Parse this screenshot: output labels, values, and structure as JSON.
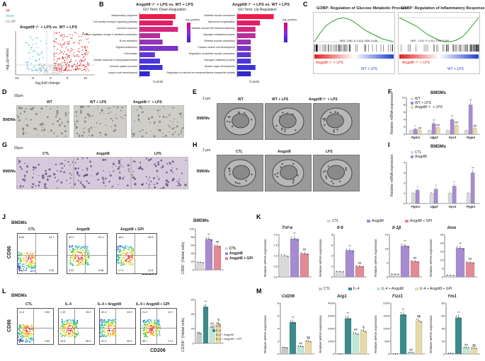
{
  "panels": {
    "A": "A",
    "B": "B",
    "C": "C",
    "D": "D",
    "E": "E",
    "F": "F",
    "G": "G",
    "H": "H",
    "I": "I",
    "J": "J",
    "K": "K",
    "L": "L",
    "M": "M"
  },
  "volcano": {
    "legend": [
      "up",
      "down",
      "no-diff"
    ],
    "colors": {
      "up": "#e41a1c",
      "down": "#4fb7c7",
      "nodiff": "#c8c8c8"
    },
    "title": "Angptl8⁻/⁻ + LPS vs. WT + LPS",
    "xlabel": "log₂fold change",
    "ylabel": "-log₁₀(p-value)",
    "xticks": [
      "-10",
      "-5",
      "0",
      "5",
      "10"
    ]
  },
  "go": {
    "down_title": "Angptl8⁻/⁻ + LPS vs. WT + LPS",
    "down_sub": "GO Term: Down Regulation",
    "up_title": "Angptl8⁻/⁻ + LPS vs. WT + LPS",
    "up_sub": "GO Term: Up Regulation",
    "legend_title": "-log₁₀(pvalue)",
    "counts_label": "Counts",
    "down_terms": [
      "Inflammatory response",
      "Cell surface receptor signaling pathway",
      "Immune response",
      "Positive regulation of type II interferon production",
      "B cell activation",
      "Signal transduction",
      "Chemotaxis",
      "Cellular response to lipopolysaccharide",
      "Immune system process",
      "Lymph node development"
    ],
    "down_counts": [
      14,
      13,
      15,
      8,
      9,
      15,
      6,
      8,
      9,
      4
    ],
    "up_terms": [
      "Skeletal muscle contraction",
      "Sarcomere organization",
      "Skeletal muscle thin filament assembly",
      "Glycogen metabolic process",
      "Skeletal muscle contraction",
      "Cardiac muscle cell development",
      "Regulation of skeletal muscle contraction",
      "Glycogen catabolic process",
      "Muscle organ development",
      "Regulation of calcium ion transmembrane transporter activity"
    ],
    "up_counts": [
      8,
      5,
      4,
      4,
      3,
      3,
      3,
      3,
      4,
      3
    ]
  },
  "gsea": {
    "left_title": "GOBP: Regulation of Glucose Metabolic Process",
    "right_title": "GOBP: Regulation of Inflammatory Response",
    "left_stats": "NES: 1.581, P: 0.014, FDR: 0.036",
    "right_stats": "NES: -1.512, P: 0.001, FDR: 0.005",
    "left_pos": "Angptl8⁻/⁻ + LPS",
    "left_neg": "WT + LPS",
    "right_pos": "Angptl8⁻/⁻ + LPS",
    "right_neg": "WT + LPS"
  },
  "D": {
    "scale": "50μm",
    "row": "BMDMs",
    "cols": [
      "WT",
      "WT + LPS",
      "Angptl8⁻/⁻ + LPS"
    ]
  },
  "E": {
    "scale": "2 μm",
    "row": "BMDMs",
    "cols": [
      "WT",
      "WT + LPS",
      "Angptl8⁻/⁻ + LPS"
    ]
  },
  "F": {
    "title": "BMDMs",
    "ylabel": "Relative mRNA expression",
    "legend": [
      "WT",
      "WT + LPS",
      "Angptl8⁻/⁻ + LPS"
    ],
    "genes": [
      "Pgm1",
      "Ugp2",
      "Gys1",
      "Pygm"
    ],
    "ymax": 10,
    "yticks": [
      "0",
      "2",
      "4",
      "6",
      "8",
      "10"
    ],
    "values": [
      [
        1,
        1,
        1,
        1
      ],
      [
        1.4,
        2.9,
        4.0,
        8.0
      ],
      [
        1.0,
        1.8,
        2.4,
        1.6
      ]
    ],
    "sig": [
      [
        "",
        ""
      ],
      [
        "*",
        "##"
      ],
      [
        "**",
        "##"
      ],
      [
        "**",
        "##"
      ],
      [
        "**",
        "##"
      ]
    ]
  },
  "G": {
    "scale": "50μm",
    "row": "BMDMs",
    "cols": [
      "CTL",
      "Angptl8",
      "LPS"
    ]
  },
  "H": {
    "scale": "2 μm",
    "row": "BMDMs",
    "cols": [
      "CTL",
      "Angptl8",
      "LPS"
    ]
  },
  "I": {
    "title": "BMDMs",
    "ylabel": "Relative mRNA expression",
    "legend": [
      "CTL",
      "Angptl8"
    ],
    "genes": [
      "Pgm1",
      "Ugp2",
      "Gys1",
      "Pygm"
    ],
    "ymax": 4,
    "yticks": [
      "0",
      "1",
      "2",
      "3",
      "4"
    ],
    "values": [
      [
        1,
        1,
        1,
        1
      ],
      [
        1.3,
        1.4,
        1.7,
        3.0
      ]
    ],
    "sig": [
      "*",
      "*",
      "*",
      "**"
    ]
  },
  "J": {
    "title": "BMDMs",
    "plots": [
      "CTL",
      "Angptl8",
      "Angptl8 + GPI"
    ],
    "xlabel": "CD206",
    "ylabel": "CD86",
    "quads": [
      [
        "0.64",
        "14.7",
        "84.2",
        "0.52"
      ],
      [
        "40.3",
        "51.1",
        "3.02",
        "5.58"
      ],
      [
        "15.3",
        "45.8",
        "17.3",
        "21.6"
      ]
    ],
    "bar_title": "BMDMs",
    "bar_ylabel": "CD86⁺ (%total cells)",
    "legend": [
      "CTL",
      "Angptl8",
      "Angptl8 + GPI"
    ],
    "values": [
      18,
      75,
      58
    ],
    "ymax": 100,
    "yticks": [
      "0",
      "20",
      "40",
      "60",
      "80",
      "100"
    ],
    "sig": [
      "",
      "**",
      "##"
    ]
  },
  "K": {
    "legend": [
      "CTL",
      "Angptl8",
      "Angptl8 + GPI"
    ],
    "ylabel": "Relative mRNA expression",
    "genes": [
      {
        "name": "Tnf-α",
        "values": [
          1.0,
          1.8,
          1.1
        ],
        "ymax": 2.0,
        "yticks": [
          "0.0",
          "0.5",
          "1.0",
          "1.5",
          "2.0"
        ],
        "sig": [
          "",
          "**",
          "##"
        ]
      },
      {
        "name": "Il-6",
        "values": [
          1.0,
          5.0,
          2.0
        ],
        "ymax": 8,
        "yticks": [
          "0",
          "2",
          "4",
          "6",
          "8"
        ],
        "sig": [
          "",
          "**",
          "##"
        ]
      },
      {
        "name": "Il-1β",
        "values": [
          1.0,
          11.0,
          5.5
        ],
        "ymax": 15,
        "yticks": [
          "0",
          "5",
          "10",
          "15"
        ],
        "sig": [
          "",
          "**",
          "##"
        ]
      },
      {
        "name": "Inos",
        "values": [
          1.0,
          17.0,
          8.5
        ],
        "ymax": 25,
        "yticks": [
          "0",
          "5",
          "10",
          "15",
          "20",
          "25"
        ],
        "sig": [
          "",
          "**",
          "##"
        ]
      }
    ]
  },
  "L": {
    "title": "BMDMs",
    "plots": [
      "CTL",
      "IL-4",
      "IL-4 + Angptl8",
      "IL-4 + Angptl8 + GPI"
    ],
    "xlabel": "CD206",
    "ylabel": "CD86",
    "quads": [
      [
        "11.4",
        "3.52",
        "83.1",
        "2.62"
      ],
      [
        "1.10",
        "19.2",
        "23.5",
        "56.3"
      ],
      [
        "22.4",
        "14.3",
        "51.0",
        "30.3"
      ],
      [
        "21.0",
        "12.7",
        "55.7",
        "17.3"
      ]
    ],
    "bar_ylabel": "CD206⁺ (%total cells)",
    "legend": [
      "CTL",
      "IL-4",
      "IL-4 + Angptl8",
      "IL-4 + Angptl8 + GPI"
    ],
    "values": [
      14,
      50,
      22,
      27
    ],
    "ymax": 60,
    "yticks": [
      "0",
      "20",
      "40",
      "60"
    ],
    "sig": [
      "",
      "**",
      "##",
      "$"
    ]
  },
  "M": {
    "legend": [
      "CTL",
      "IL-4",
      "IL-4 + Angptl8",
      "IL-4 + Angptl8 + GPI"
    ],
    "ylabel": "Relative mRNA expression",
    "genes": [
      {
        "name": "Cd206",
        "values": [
          1.0,
          5.0,
          1.2,
          2.0
        ],
        "ymax": 8,
        "yticks": [
          "0",
          "2",
          "4",
          "6",
          "8"
        ],
        "sig": [
          "",
          "**",
          "##",
          "$$"
        ]
      },
      {
        "name": "Arg1",
        "values": [
          1,
          2800,
          1600,
          1800
        ],
        "ymax": 4000,
        "yticks": [
          "0",
          "1000",
          "2000",
          "3000",
          "4000"
        ],
        "sig": [
          "",
          "**",
          "##",
          "$"
        ]
      },
      {
        "name": "Fizz1",
        "values": [
          1,
          1550,
          60,
          1300
        ],
        "ymax": 2000,
        "yticks": [
          "0",
          "500",
          "1000",
          "1500",
          "2000"
        ],
        "sig": [
          "",
          "**",
          "##",
          "$$"
        ]
      },
      {
        "name": "Ym1",
        "values": [
          1,
          57,
          10,
          9
        ],
        "ymax": 80,
        "yticks": [
          "0",
          "20",
          "40",
          "60",
          "80"
        ],
        "sig": [
          "",
          "**",
          "##",
          "$$"
        ]
      }
    ]
  },
  "colors": {
    "ctl": "#d9d9d9",
    "wt": "#d9d9d9",
    "purple": "#a78bd0",
    "pink": "#e28a95",
    "teal": "#3d8a8a",
    "mint": "#bfe8d6",
    "grey2": "#c9c9c9",
    "gold": "#e8d9a8"
  }
}
